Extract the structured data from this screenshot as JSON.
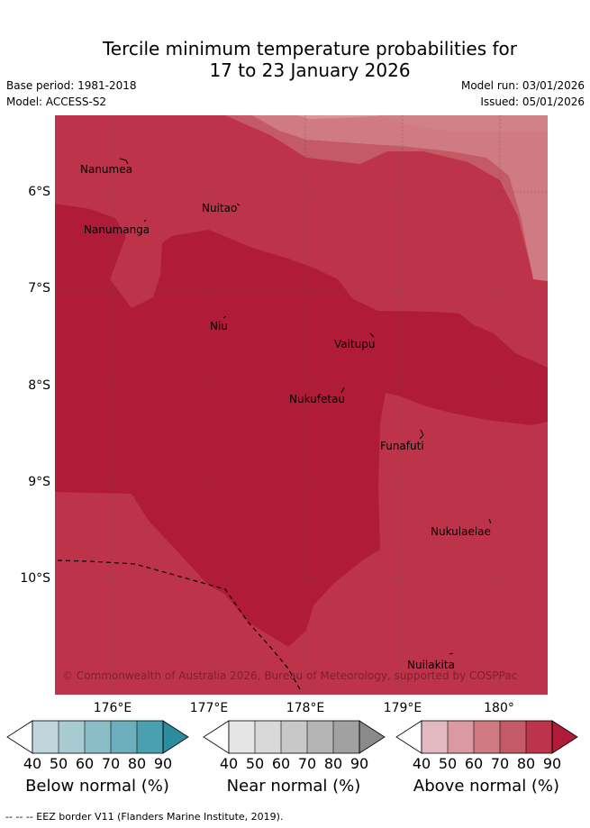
{
  "title": {
    "line1": "Tercile minimum temperature probabilities for",
    "line2": "17 to 23 January 2026"
  },
  "meta": {
    "base_period": "Base period: 1981-2018",
    "model": "Model: ACCESS-S2",
    "model_run": "Model run: 03/01/2026",
    "issued": "Issued: 05/01/2026"
  },
  "map": {
    "copyright": "© Commonwealth of Australia 2026, Bureau of Meteorology, supported by COSPPac",
    "x_ticks": [
      "176°E",
      "177°E",
      "178°E",
      "179°E",
      "180°"
    ],
    "y_ticks": [
      "6°S",
      "7°S",
      "8°S",
      "9°S",
      "10°S"
    ],
    "places": [
      {
        "name": "Nanumea"
      },
      {
        "name": "Nuitao"
      },
      {
        "name": "Nanumanga"
      },
      {
        "name": "Niu"
      },
      {
        "name": "Vaitupu"
      },
      {
        "name": "Nukufetau"
      },
      {
        "name": "Funafuti"
      },
      {
        "name": "Nukulaelae"
      },
      {
        "name": "Nuilakita"
      }
    ],
    "colors": {
      "above_60": "#d07b84",
      "above_70": "#c45a66",
      "above_80": "#bd3349",
      "above_90": "#b01c38"
    }
  },
  "colorbars": [
    {
      "title": "Below normal (%)",
      "ticks": [
        "40",
        "50",
        "60",
        "70",
        "80",
        "90"
      ],
      "colors": [
        "#bfd6dc",
        "#a8cbd1",
        "#8bbdc7",
        "#6eafbd",
        "#4aa0b0",
        "#2c8c9e"
      ]
    },
    {
      "title": "Near normal (%)",
      "ticks": [
        "40",
        "50",
        "60",
        "70",
        "80",
        "90"
      ],
      "colors": [
        "#e5e5e5",
        "#d9d9d9",
        "#c8c8c8",
        "#b5b5b5",
        "#a1a1a1",
        "#8a8a8a"
      ]
    },
    {
      "title": "Above normal (%)",
      "ticks": [
        "40",
        "50",
        "60",
        "70",
        "80",
        "90"
      ],
      "colors": [
        "#e2b9c0",
        "#d99aa2",
        "#d07b84",
        "#c45a66",
        "#bd3349",
        "#b01c38"
      ]
    }
  ],
  "footer": "--  --  -- EEZ border V11 (Flanders Marine Institute, 2019)."
}
